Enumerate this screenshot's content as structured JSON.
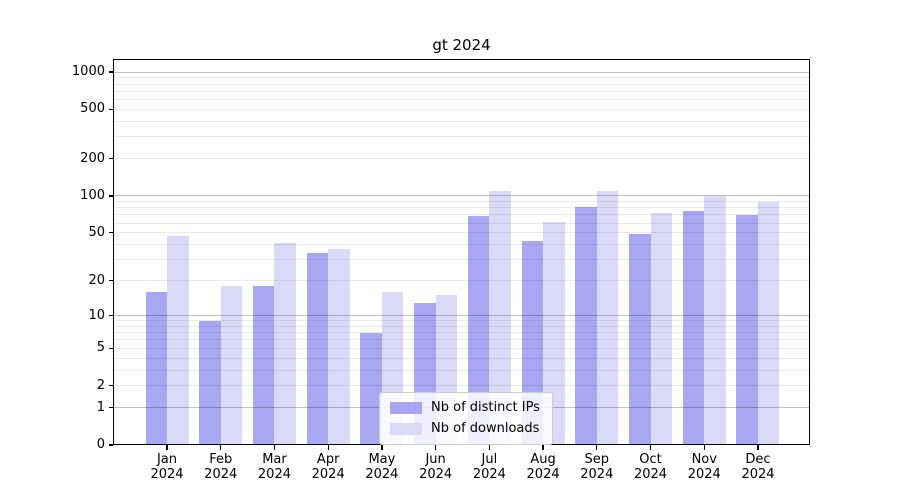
{
  "chart_data": {
    "type": "bar",
    "title": "gt 2024",
    "categories": [
      "Jan",
      "Feb",
      "Mar",
      "Apr",
      "May",
      "Jun",
      "Jul",
      "Aug",
      "Sep",
      "Oct",
      "Nov",
      "Dec"
    ],
    "year_label": "2024",
    "series": [
      {
        "name": "Nb of distinct IPs",
        "color": "#a7a7f2",
        "values": [
          16,
          9,
          18,
          34,
          7,
          13,
          68,
          43,
          81,
          49,
          76,
          70
        ]
      },
      {
        "name": "Nb of downloads",
        "color": "#dadaf8",
        "values": [
          47,
          18,
          41,
          37,
          16,
          15,
          110,
          61,
          110,
          73,
          100,
          89
        ]
      }
    ],
    "yscale": "log1p",
    "yticks": [
      1000,
      500,
      200,
      100,
      50,
      20,
      10,
      5,
      2,
      1,
      0
    ],
    "ylim": [
      0,
      1274
    ],
    "grid": true,
    "legend_position": "lower center",
    "colors": {
      "axis": "#000000",
      "major_grid": "rgba(0,0,0,0.24)",
      "minor_grid": "rgba(0,0,0,0.08)",
      "legend_border": "#cccccc"
    }
  }
}
